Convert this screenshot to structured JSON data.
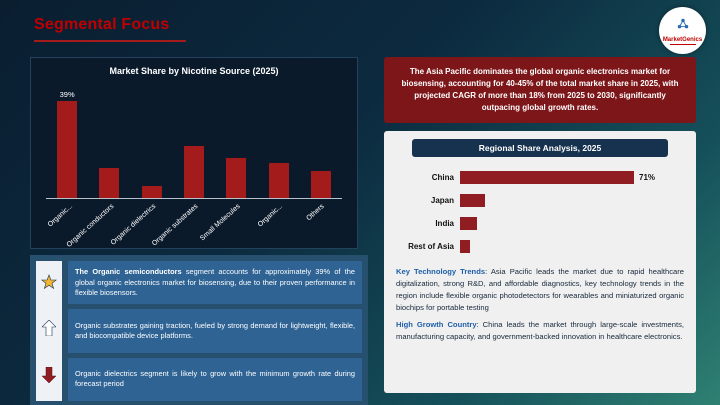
{
  "header": {
    "title": "Segmental Focus"
  },
  "logo": {
    "brand": "MarketGenics"
  },
  "chart_data": [
    {
      "type": "bar",
      "title": "Market Share by Nicotine Source (2025)",
      "categories": [
        "Organic...",
        "Organic conductors",
        "Organic dielectrics",
        "Organic substrates",
        "Small Molecules",
        "Organic...",
        "Others"
      ],
      "values": [
        39,
        12,
        5,
        21,
        16,
        14,
        11
      ],
      "data_labels": [
        "39%",
        "",
        "",
        "",
        "",
        "",
        ""
      ],
      "ylim": [
        0,
        45
      ],
      "bar_color": "#a31b1b",
      "grid": false,
      "legend": "none"
    },
    {
      "type": "bar",
      "orientation": "horizontal",
      "title": "Regional Share Analysis, 2025",
      "categories": [
        "China",
        "Japan",
        "India",
        "Rest of Asia"
      ],
      "values": [
        71,
        10,
        7,
        4
      ],
      "data_labels": [
        "71%",
        "",
        "",
        ""
      ],
      "xlim": [
        0,
        80
      ],
      "bar_color": "#8f1d22",
      "grid": false,
      "legend": "none"
    }
  ],
  "insights": {
    "items": [
      {
        "icon": "star-icon",
        "bold": "The Organic semiconductors",
        "text": " segment accounts for approximately 39% of the global organic electronics market for biosensing, due to their proven performance in flexible biosensors."
      },
      {
        "icon": "up-arrow-icon",
        "bold": "",
        "text": "Organic substrates gaining traction, fueled by strong demand for lightweight, flexible, and biocompatible device platforms."
      },
      {
        "icon": "down-arrow-icon",
        "bold": "",
        "text": "Organic dielectrics segment is likely to grow with the minimum growth rate during forecast period"
      }
    ]
  },
  "right": {
    "highlight": "The Asia Pacific dominates the global organic electronics market for biosensing, accounting for 40-45% of the total market share in 2025, with projected CAGR of more than 18% from 2025 to 2030, significantly outpacing global growth rates.",
    "paragraphs": [
      {
        "lead": "Key Technology Trends",
        "text": ": Asia Pacific leads the market due to rapid healthcare digitalization, strong R&D, and affordable diagnostics, key technology trends in the region include flexible organic photodetectors for wearables and miniaturized organic biochips for portable testing"
      },
      {
        "lead": "High Growth Country",
        "text": ": China leads the market through large-scale investments, manufacturing capacity, and government-backed innovation in healthcare electronics."
      }
    ]
  },
  "colors": {
    "accent_red": "#c00000",
    "bar_red": "#a31b1b",
    "maroon_box": "#7d1619",
    "panel_navy": "#0b1a2b",
    "insight_blue": "#2e6394",
    "header_navy": "#16324f",
    "lead_blue": "#1f5fa8",
    "star_gold": "#f2b632"
  }
}
